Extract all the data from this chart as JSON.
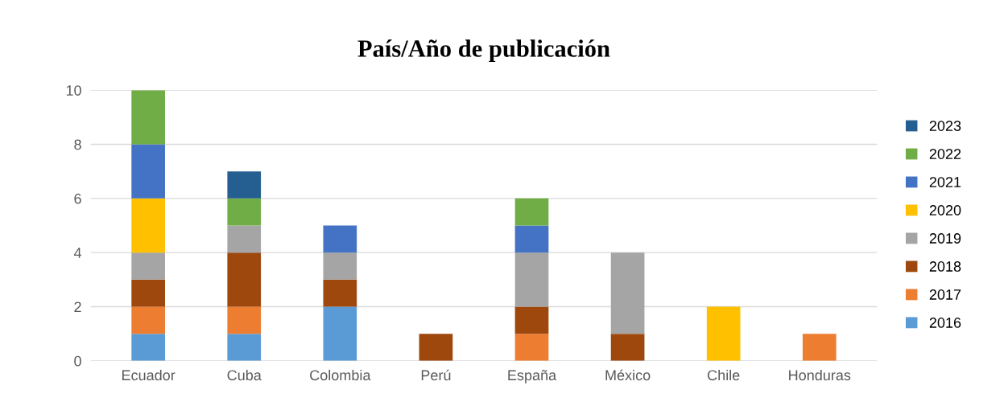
{
  "chart_data": {
    "type": "bar",
    "title": "País/Año de publicación",
    "stacked": true,
    "categories": [
      "Ecuador",
      "Cuba",
      "Colombia",
      "Perú",
      "España",
      "México",
      "Chile",
      "Honduras"
    ],
    "series": [
      {
        "name": "2016",
        "color": "#5b9bd5",
        "values": [
          1,
          1,
          2,
          0,
          0,
          0,
          0,
          0
        ]
      },
      {
        "name": "2017",
        "color": "#ed7d31",
        "values": [
          1,
          1,
          0,
          0,
          1,
          0,
          0,
          1
        ]
      },
      {
        "name": "2018",
        "color": "#9e480e",
        "values": [
          1,
          2,
          1,
          1,
          1,
          1,
          0,
          0
        ]
      },
      {
        "name": "2019",
        "color": "#a5a5a5",
        "values": [
          1,
          1,
          1,
          0,
          2,
          3,
          0,
          0
        ]
      },
      {
        "name": "2020",
        "color": "#ffc000",
        "values": [
          2,
          0,
          0,
          0,
          0,
          0,
          2,
          0
        ]
      },
      {
        "name": "2021",
        "color": "#4472c4",
        "values": [
          2,
          0,
          1,
          0,
          1,
          0,
          0,
          0
        ]
      },
      {
        "name": "2022",
        "color": "#70ad47",
        "values": [
          2,
          1,
          0,
          0,
          1,
          0,
          0,
          0
        ]
      },
      {
        "name": "2023",
        "color": "#255e91",
        "values": [
          0,
          1,
          0,
          0,
          0,
          0,
          0,
          0
        ]
      }
    ],
    "ylim": [
      0,
      10
    ],
    "yticks": [
      0,
      2,
      4,
      6,
      8,
      10
    ],
    "grid": "y",
    "legend": "right"
  }
}
